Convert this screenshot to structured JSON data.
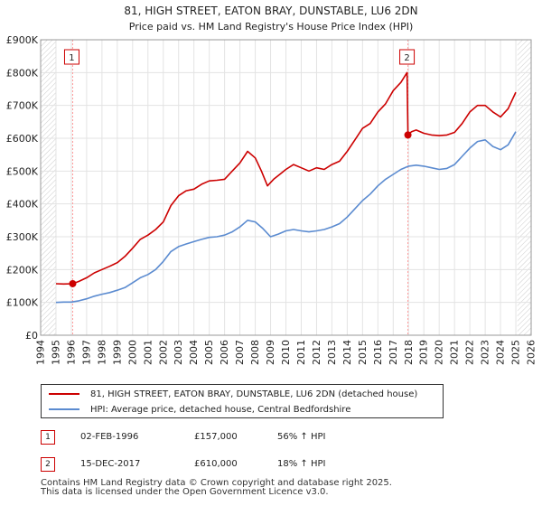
{
  "chart_data": {
    "type": "line",
    "title": "81, HIGH STREET, EATON BRAY, DUNSTABLE, LU6 2DN",
    "subtitle": "Price paid vs. HM Land Registry's House Price Index (HPI)",
    "xlim": [
      1994,
      2026
    ],
    "ylim": [
      0,
      900000
    ],
    "yticks": [
      0,
      100000,
      200000,
      300000,
      400000,
      500000,
      600000,
      700000,
      800000,
      900000
    ],
    "ytick_labels": [
      "£0",
      "£100K",
      "£200K",
      "£300K",
      "£400K",
      "£500K",
      "£600K",
      "£700K",
      "£800K",
      "£900K"
    ],
    "xticks": [
      1994,
      1995,
      1996,
      1997,
      1998,
      1999,
      2000,
      2001,
      2002,
      2003,
      2004,
      2005,
      2006,
      2007,
      2008,
      2009,
      2010,
      2011,
      2012,
      2013,
      2014,
      2015,
      2016,
      2017,
      2018,
      2019,
      2020,
      2021,
      2022,
      2023,
      2024,
      2025,
      2026
    ],
    "hatch_ranges": [
      [
        1994,
        1995
      ],
      [
        2025.1,
        2026
      ]
    ],
    "series": [
      {
        "name": "81, HIGH STREET, EATON BRAY, DUNSTABLE, LU6 2DN (detached house)",
        "color": "#cc0000",
        "x": [
          1995.0,
          1995.5,
          1996.09,
          1996.5,
          1997.0,
          1997.5,
          1998.0,
          1998.5,
          1999.0,
          1999.5,
          2000.0,
          2000.5,
          2001.0,
          2001.5,
          2002.0,
          2002.5,
          2003.0,
          2003.5,
          2004.0,
          2004.5,
          2005.0,
          2005.5,
          2006.0,
          2006.5,
          2007.0,
          2007.5,
          2008.0,
          2008.4,
          2008.8,
          2009.2,
          2009.6,
          2010.0,
          2010.5,
          2011.0,
          2011.5,
          2012.0,
          2012.5,
          2013.0,
          2013.5,
          2014.0,
          2014.5,
          2015.0,
          2015.5,
          2016.0,
          2016.5,
          2017.0,
          2017.5,
          2017.9,
          2017.96,
          2018.2,
          2018.5,
          2019.0,
          2019.5,
          2020.0,
          2020.5,
          2021.0,
          2021.5,
          2022.0,
          2022.5,
          2023.0,
          2023.5,
          2024.0,
          2024.5,
          2025.0
        ],
        "y": [
          157000,
          156000,
          157000,
          164000,
          175000,
          190000,
          200000,
          210000,
          221000,
          240000,
          265000,
          292000,
          305000,
          322000,
          345000,
          395000,
          425000,
          440000,
          445000,
          460000,
          470000,
          472000,
          475000,
          500000,
          525000,
          560000,
          540000,
          500000,
          455000,
          475000,
          490000,
          505000,
          520000,
          510000,
          500000,
          510000,
          505000,
          520000,
          530000,
          560000,
          595000,
          630000,
          645000,
          680000,
          705000,
          745000,
          770000,
          800000,
          610000,
          620000,
          625000,
          615000,
          610000,
          608000,
          610000,
          618000,
          645000,
          680000,
          700000,
          700000,
          680000,
          665000,
          690000,
          740000
        ],
        "highlight_points": [
          [
            1996.09,
            157000
          ],
          [
            2017.96,
            610000
          ]
        ]
      },
      {
        "name": "HPI: Average price, detached house, Central Bedfordshire",
        "color": "#5b8bd0",
        "x": [
          1995.0,
          1995.5,
          1996.0,
          1996.5,
          1997.0,
          1997.5,
          1998.0,
          1998.5,
          1999.0,
          1999.5,
          2000.0,
          2000.5,
          2001.0,
          2001.5,
          2002.0,
          2002.5,
          2003.0,
          2003.5,
          2004.0,
          2004.5,
          2005.0,
          2005.5,
          2006.0,
          2006.5,
          2007.0,
          2007.5,
          2008.0,
          2008.5,
          2009.0,
          2009.5,
          2010.0,
          2010.5,
          2011.0,
          2011.5,
          2012.0,
          2012.5,
          2013.0,
          2013.5,
          2014.0,
          2014.5,
          2015.0,
          2015.5,
          2016.0,
          2016.5,
          2017.0,
          2017.5,
          2018.0,
          2018.5,
          2019.0,
          2019.5,
          2020.0,
          2020.5,
          2021.0,
          2021.5,
          2022.0,
          2022.5,
          2023.0,
          2023.5,
          2024.0,
          2024.5,
          2025.0
        ],
        "y": [
          100000,
          101000,
          101000,
          105000,
          111000,
          119000,
          125000,
          130000,
          137000,
          145000,
          160000,
          175000,
          185000,
          200000,
          225000,
          255000,
          270000,
          278000,
          285000,
          292000,
          298000,
          300000,
          305000,
          315000,
          330000,
          350000,
          345000,
          325000,
          300000,
          308000,
          318000,
          322000,
          318000,
          315000,
          318000,
          322000,
          330000,
          340000,
          360000,
          385000,
          410000,
          430000,
          455000,
          475000,
          490000,
          505000,
          515000,
          518000,
          515000,
          510000,
          505000,
          508000,
          520000,
          545000,
          570000,
          590000,
          595000,
          575000,
          565000,
          580000,
          620000
        ]
      }
    ],
    "annotations": [
      {
        "label": "1",
        "x": 1996.09
      },
      {
        "label": "2",
        "x": 2017.96
      }
    ]
  },
  "legend": {
    "items": [
      {
        "label": "81, HIGH STREET, EATON BRAY, DUNSTABLE, LU6 2DN (detached house)",
        "color": "#cc0000"
      },
      {
        "label": "HPI: Average price, detached house, Central Bedfordshire",
        "color": "#5b8bd0"
      }
    ]
  },
  "transactions": [
    {
      "num": "1",
      "date": "02-FEB-1996",
      "price": "£157,000",
      "hpi": "56% ↑ HPI"
    },
    {
      "num": "2",
      "date": "15-DEC-2017",
      "price": "£610,000",
      "hpi": "18% ↑ HPI"
    }
  ],
  "footer": {
    "line1": "Contains HM Land Registry data © Crown copyright and database right 2025.",
    "line2": "This data is licensed under the Open Government Licence v3.0."
  }
}
